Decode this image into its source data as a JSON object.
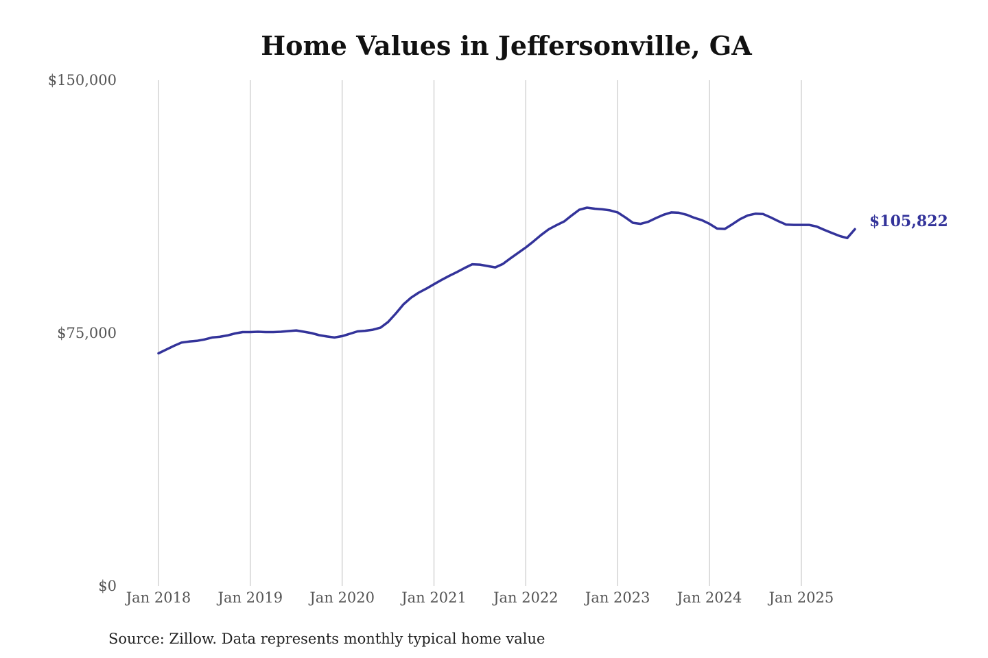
{
  "chart_data": {
    "type": "line",
    "title": "Home Values in Jeffersonville, GA",
    "source": "Source: Zillow. Data represents monthly typical home value",
    "xlabel": "",
    "ylabel": "",
    "ylim": [
      0,
      150000
    ],
    "xlim": [
      "2018-01",
      "2025-08"
    ],
    "grid": "vertical at each January",
    "y_ticks": [
      {
        "value": 0,
        "label": "$0"
      },
      {
        "value": 75000,
        "label": "$75,000"
      },
      {
        "value": 150000,
        "label": "$150,000"
      }
    ],
    "x_ticks": [
      {
        "date": "2018-01",
        "label": "Jan 2018"
      },
      {
        "date": "2019-01",
        "label": "Jan 2019"
      },
      {
        "date": "2020-01",
        "label": "Jan 2020"
      },
      {
        "date": "2021-01",
        "label": "Jan 2021"
      },
      {
        "date": "2022-01",
        "label": "Jan 2022"
      },
      {
        "date": "2023-01",
        "label": "Jan 2023"
      },
      {
        "date": "2024-01",
        "label": "Jan 2024"
      },
      {
        "date": "2025-01",
        "label": "Jan 2025"
      }
    ],
    "end_label": "$105,822",
    "series": [
      {
        "color": "#33339a",
        "points": [
          [
            "2018-01",
            69000
          ],
          [
            "2018-02",
            70100
          ],
          [
            "2018-03",
            71200
          ],
          [
            "2018-04",
            72200
          ],
          [
            "2018-05",
            72500
          ],
          [
            "2018-06",
            72700
          ],
          [
            "2018-07",
            73100
          ],
          [
            "2018-08",
            73700
          ],
          [
            "2018-09",
            73900
          ],
          [
            "2018-10",
            74300
          ],
          [
            "2018-11",
            74900
          ],
          [
            "2018-12",
            75300
          ],
          [
            "2019-01",
            75300
          ],
          [
            "2019-02",
            75400
          ],
          [
            "2019-03",
            75300
          ],
          [
            "2019-04",
            75300
          ],
          [
            "2019-05",
            75400
          ],
          [
            "2019-06",
            75600
          ],
          [
            "2019-07",
            75800
          ],
          [
            "2019-08",
            75400
          ],
          [
            "2019-09",
            75000
          ],
          [
            "2019-10",
            74400
          ],
          [
            "2019-11",
            74000
          ],
          [
            "2019-12",
            73700
          ],
          [
            "2020-01",
            74100
          ],
          [
            "2020-02",
            74800
          ],
          [
            "2020-03",
            75500
          ],
          [
            "2020-04",
            75700
          ],
          [
            "2020-05",
            76000
          ],
          [
            "2020-06",
            76600
          ],
          [
            "2020-07",
            78300
          ],
          [
            "2020-08",
            80800
          ],
          [
            "2020-09",
            83500
          ],
          [
            "2020-10",
            85500
          ],
          [
            "2020-11",
            87000
          ],
          [
            "2020-12",
            88200
          ],
          [
            "2021-01",
            89500
          ],
          [
            "2021-02",
            90800
          ],
          [
            "2021-03",
            92000
          ],
          [
            "2021-04",
            93100
          ],
          [
            "2021-05",
            94300
          ],
          [
            "2021-06",
            95400
          ],
          [
            "2021-07",
            95300
          ],
          [
            "2021-08",
            94900
          ],
          [
            "2021-09",
            94500
          ],
          [
            "2021-10",
            95500
          ],
          [
            "2021-11",
            97200
          ],
          [
            "2021-12",
            98800
          ],
          [
            "2022-01",
            100400
          ],
          [
            "2022-02",
            102200
          ],
          [
            "2022-03",
            104100
          ],
          [
            "2022-04",
            105800
          ],
          [
            "2022-05",
            107000
          ],
          [
            "2022-06",
            108100
          ],
          [
            "2022-07",
            109900
          ],
          [
            "2022-08",
            111600
          ],
          [
            "2022-09",
            112200
          ],
          [
            "2022-10",
            111900
          ],
          [
            "2022-11",
            111700
          ],
          [
            "2022-12",
            111400
          ],
          [
            "2023-01",
            110800
          ],
          [
            "2023-02",
            109300
          ],
          [
            "2023-03",
            107700
          ],
          [
            "2023-04",
            107400
          ],
          [
            "2023-05",
            108000
          ],
          [
            "2023-06",
            109100
          ],
          [
            "2023-07",
            110100
          ],
          [
            "2023-08",
            110800
          ],
          [
            "2023-09",
            110700
          ],
          [
            "2023-10",
            110100
          ],
          [
            "2023-11",
            109200
          ],
          [
            "2023-12",
            108500
          ],
          [
            "2024-01",
            107400
          ],
          [
            "2024-02",
            106000
          ],
          [
            "2024-03",
            105900
          ],
          [
            "2024-04",
            107300
          ],
          [
            "2024-05",
            108800
          ],
          [
            "2024-06",
            109900
          ],
          [
            "2024-07",
            110400
          ],
          [
            "2024-08",
            110300
          ],
          [
            "2024-09",
            109300
          ],
          [
            "2024-10",
            108200
          ],
          [
            "2024-11",
            107200
          ],
          [
            "2024-12",
            107100
          ],
          [
            "2025-01",
            107100
          ],
          [
            "2025-02",
            107100
          ],
          [
            "2025-03",
            106600
          ],
          [
            "2025-04",
            105600
          ],
          [
            "2025-05",
            104700
          ],
          [
            "2025-06",
            103800
          ],
          [
            "2025-07",
            103200
          ],
          [
            "2025-08",
            105822
          ]
        ]
      }
    ]
  }
}
